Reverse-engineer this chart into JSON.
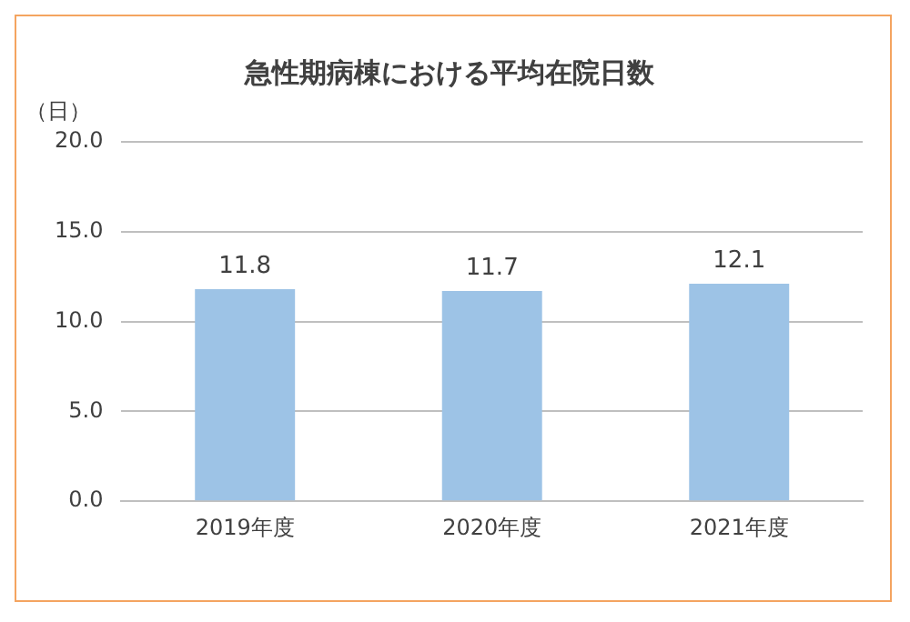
{
  "chart_data": {
    "type": "bar",
    "title": "急性期病棟における平均在院日数",
    "ylabel": "（日）",
    "categories": [
      "2019年度",
      "2020年度",
      "2021年度"
    ],
    "values": [
      11.8,
      11.7,
      12.1
    ],
    "color": "#9dc3e6",
    "ylim": [
      0,
      20
    ],
    "yticks": [
      {
        "value": 0,
        "label": "0.0"
      },
      {
        "value": 5,
        "label": "5.0"
      },
      {
        "value": 10,
        "label": "10.0"
      },
      {
        "value": 15,
        "label": "15.0"
      },
      {
        "value": 20,
        "label": "20.0"
      }
    ],
    "grid": "y",
    "data_labels": true
  }
}
